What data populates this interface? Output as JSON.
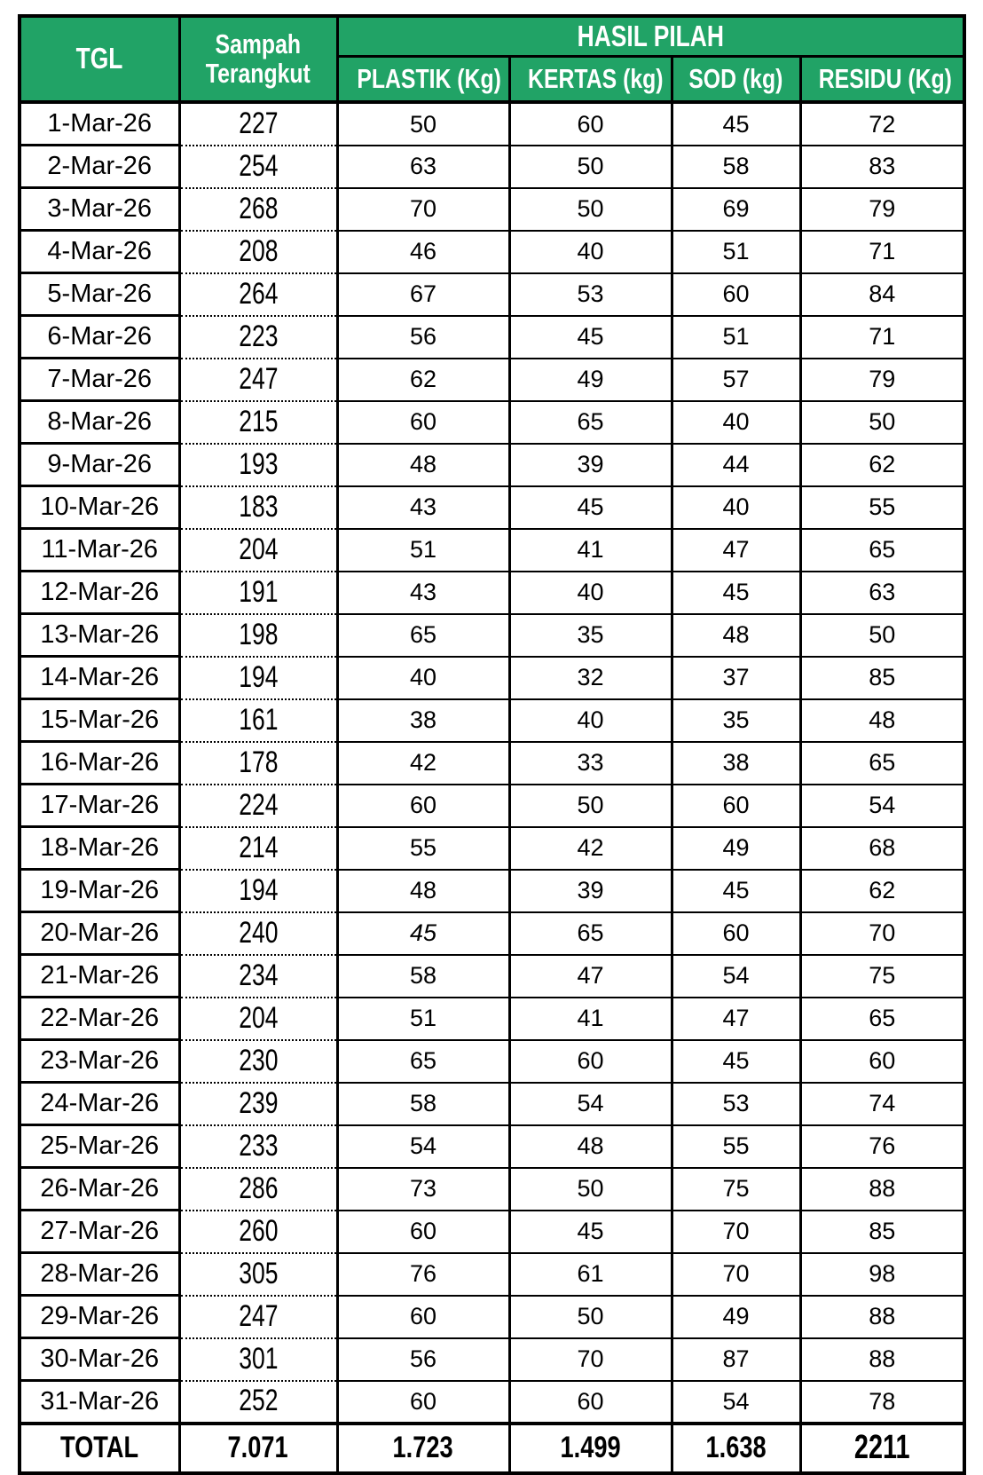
{
  "table": {
    "header": {
      "tgl": "TGL",
      "sampah_line1": "Sampah",
      "sampah_line2": "Terangkut",
      "hasil_pilah": "HASIL PILAH",
      "sub_headers": [
        "PLASTIK (Kg)",
        "KERTAS (kg)",
        "SOD (kg)",
        "RESIDU (Kg)"
      ]
    },
    "colors": {
      "header_green": "#21A366",
      "header_text": "#FFFFFF",
      "border": "#000000"
    },
    "rows": [
      {
        "date": "1-Mar-26",
        "terangkut": "227",
        "plastik": "50",
        "kertas": "60",
        "sod": "45",
        "residu": "72"
      },
      {
        "date": "2-Mar-26",
        "terangkut": "254",
        "plastik": "63",
        "kertas": "50",
        "sod": "58",
        "residu": "83"
      },
      {
        "date": "3-Mar-26",
        "terangkut": "268",
        "plastik": "70",
        "kertas": "50",
        "sod": "69",
        "residu": "79"
      },
      {
        "date": "4-Mar-26",
        "terangkut": "208",
        "plastik": "46",
        "kertas": "40",
        "sod": "51",
        "residu": "71"
      },
      {
        "date": "5-Mar-26",
        "terangkut": "264",
        "plastik": "67",
        "kertas": "53",
        "sod": "60",
        "residu": "84"
      },
      {
        "date": "6-Mar-26",
        "terangkut": "223",
        "plastik": "56",
        "kertas": "45",
        "sod": "51",
        "residu": "71"
      },
      {
        "date": "7-Mar-26",
        "terangkut": "247",
        "plastik": "62",
        "kertas": "49",
        "sod": "57",
        "residu": "79"
      },
      {
        "date": "8-Mar-26",
        "terangkut": "215",
        "plastik": "60",
        "kertas": "65",
        "sod": "40",
        "residu": "50"
      },
      {
        "date": "9-Mar-26",
        "terangkut": "193",
        "plastik": "48",
        "kertas": "39",
        "sod": "44",
        "residu": "62"
      },
      {
        "date": "10-Mar-26",
        "terangkut": "183",
        "plastik": "43",
        "kertas": "45",
        "sod": "40",
        "residu": "55"
      },
      {
        "date": "11-Mar-26",
        "terangkut": "204",
        "plastik": "51",
        "kertas": "41",
        "sod": "47",
        "residu": "65"
      },
      {
        "date": "12-Mar-26",
        "terangkut": "191",
        "plastik": "43",
        "kertas": "40",
        "sod": "45",
        "residu": "63"
      },
      {
        "date": "13-Mar-26",
        "terangkut": "198",
        "plastik": "65",
        "kertas": "35",
        "sod": "48",
        "residu": "50"
      },
      {
        "date": "14-Mar-26",
        "terangkut": "194",
        "plastik": "40",
        "kertas": "32",
        "sod": "37",
        "residu": "85"
      },
      {
        "date": "15-Mar-26",
        "terangkut": "161",
        "plastik": "38",
        "kertas": "40",
        "sod": "35",
        "residu": "48"
      },
      {
        "date": "16-Mar-26",
        "terangkut": "178",
        "plastik": "42",
        "kertas": "33",
        "sod": "38",
        "residu": "65"
      },
      {
        "date": "17-Mar-26",
        "terangkut": "224",
        "plastik": "60",
        "kertas": "50",
        "sod": "60",
        "residu": "54"
      },
      {
        "date": "18-Mar-26",
        "terangkut": "214",
        "plastik": "55",
        "kertas": "42",
        "sod": "49",
        "residu": "68"
      },
      {
        "date": "19-Mar-26",
        "terangkut": "194",
        "plastik": "48",
        "kertas": "39",
        "sod": "45",
        "residu": "62"
      },
      {
        "date": "20-Mar-26",
        "terangkut": "240",
        "plastik": "45",
        "plastik_style": "italic",
        "kertas": "65",
        "sod": "60",
        "residu": "70"
      },
      {
        "date": "21-Mar-26",
        "terangkut": "234",
        "plastik": "58",
        "kertas": "47",
        "sod": "54",
        "residu": "75"
      },
      {
        "date": "22-Mar-26",
        "terangkut": "204",
        "plastik": "51",
        "kertas": "41",
        "sod": "47",
        "residu": "65"
      },
      {
        "date": "23-Mar-26",
        "terangkut": "230",
        "plastik": "65",
        "kertas": "60",
        "sod": "45",
        "residu": "60"
      },
      {
        "date": "24-Mar-26",
        "terangkut": "239",
        "plastik": "58",
        "kertas": "54",
        "sod": "53",
        "residu": "74"
      },
      {
        "date": "25-Mar-26",
        "terangkut": "233",
        "plastik": "54",
        "kertas": "48",
        "sod": "55",
        "residu": "76"
      },
      {
        "date": "26-Mar-26",
        "terangkut": "286",
        "plastik": "73",
        "kertas": "50",
        "sod": "75",
        "residu": "88"
      },
      {
        "date": "27-Mar-26",
        "terangkut": "260",
        "plastik": "60",
        "kertas": "45",
        "sod": "70",
        "residu": "85"
      },
      {
        "date": "28-Mar-26",
        "terangkut": "305",
        "plastik": "76",
        "kertas": "61",
        "sod": "70",
        "residu": "98"
      },
      {
        "date": "29-Mar-26",
        "terangkut": "247",
        "plastik": "60",
        "kertas": "50",
        "sod": "49",
        "residu": "88"
      },
      {
        "date": "30-Mar-26",
        "terangkut": "301",
        "plastik": "56",
        "kertas": "70",
        "sod": "87",
        "residu": "88"
      },
      {
        "date": "31-Mar-26",
        "terangkut": "252",
        "plastik": "60",
        "kertas": "60",
        "sod": "54",
        "residu": "78"
      }
    ],
    "total": {
      "label": "TOTAL",
      "terangkut": "7.071",
      "plastik": "1.723",
      "kertas": "1.499",
      "sod": "1.638",
      "residu": "2211"
    }
  }
}
